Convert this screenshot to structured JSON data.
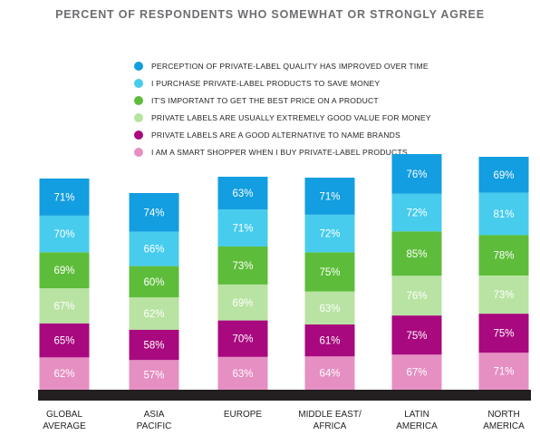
{
  "title": "PERCENT OF RESPONDENTS WHO SOMEWHAT OR STRONGLY AGREE",
  "legend": [
    {
      "label": "PERCEPTION OF PRIVATE-LABEL QUALITY HAS IMPROVED OVER TIME",
      "color": "#129ee0"
    },
    {
      "label": "I PURCHASE PRIVATE-LABEL PRODUCTS TO SAVE MONEY",
      "color": "#47cced"
    },
    {
      "label": "IT'S IMPORTANT TO GET THE BEST PRICE ON A PRODUCT",
      "color": "#5dbd3a"
    },
    {
      "label": "PRIVATE LABELS ARE USUALLY EXTREMELY GOOD VALUE FOR MONEY",
      "color": "#b8e3a2"
    },
    {
      "label": "PRIVATE LABELS ARE A GOOD ALTERNATIVE TO NAME BRANDS",
      "color": "#a8097e"
    },
    {
      "label": "I AM A SMART SHOPPER WHEN I BUY PRIVATE-LABEL PRODUCTS",
      "color": "#e68fc3"
    }
  ],
  "chart_data": {
    "type": "bar",
    "stacked": true,
    "title": "PERCENT OF RESPONDENTS WHO SOMEWHAT OR STRONGLY AGREE",
    "categories": [
      "GLOBAL\nAVERAGE",
      "ASIA\nPACIFIC",
      "EUROPE",
      "MIDDLE EAST/\nAFRICA",
      "LATIN\nAMERICA",
      "NORTH\nAMERICA"
    ],
    "series": [
      {
        "name": "I AM A SMART SHOPPER WHEN I BUY PRIVATE-LABEL PRODUCTS",
        "color": "#e68fc3",
        "text_color": "#ffffff",
        "values": [
          62,
          57,
          63,
          64,
          67,
          71
        ],
        "labels": [
          "62%",
          "57%",
          "63%",
          "64%",
          "67%",
          "71%"
        ]
      },
      {
        "name": "PRIVATE LABELS ARE A GOOD ALTERNATIVE TO NAME BRANDS",
        "color": "#a8097e",
        "text_color": "#ffffff",
        "values": [
          65,
          58,
          70,
          61,
          75,
          75
        ],
        "labels": [
          "65%",
          "58%",
          "70%",
          "61%",
          "75%",
          "75%"
        ]
      },
      {
        "name": "PRIVATE LABELS ARE USUALLY EXTREMELY GOOD VALUE FOR MONEY",
        "color": "#b8e3a2",
        "text_color": "#ffffff",
        "values": [
          67,
          62,
          69,
          63,
          76,
          73
        ],
        "labels": [
          "67%",
          "62%",
          "69%",
          "63%",
          "76%",
          "73%"
        ]
      },
      {
        "name": "IT'S IMPORTANT TO GET THE BEST PRICE ON A PRODUCT",
        "color": "#5dbd3a",
        "text_color": "#ffffff",
        "values": [
          69,
          60,
          73,
          75,
          85,
          78
        ],
        "labels": [
          "69%",
          "60%",
          "73%",
          "75%",
          "85%",
          "78%"
        ]
      },
      {
        "name": "I PURCHASE PRIVATE-LABEL PRODUCTS TO SAVE MONEY",
        "color": "#47cced",
        "text_color": "#ffffff",
        "values": [
          70,
          66,
          71,
          72,
          72,
          81
        ],
        "labels": [
          "70%",
          "66%",
          "71%",
          "72%",
          "72%",
          "81%"
        ]
      },
      {
        "name": "PERCEPTION OF PRIVATE-LABEL QUALITY HAS IMPROVED OVER TIME",
        "color": "#129ee0",
        "text_color": "#ffffff",
        "values": [
          71,
          74,
          63,
          71,
          76,
          69
        ],
        "labels": [
          "71%",
          "74%",
          "63%",
          "71%",
          "76%",
          "69%"
        ]
      }
    ],
    "baseline_color": "#231f20",
    "category_label_color": "#231f20",
    "legend_position": "top",
    "grid": false
  }
}
